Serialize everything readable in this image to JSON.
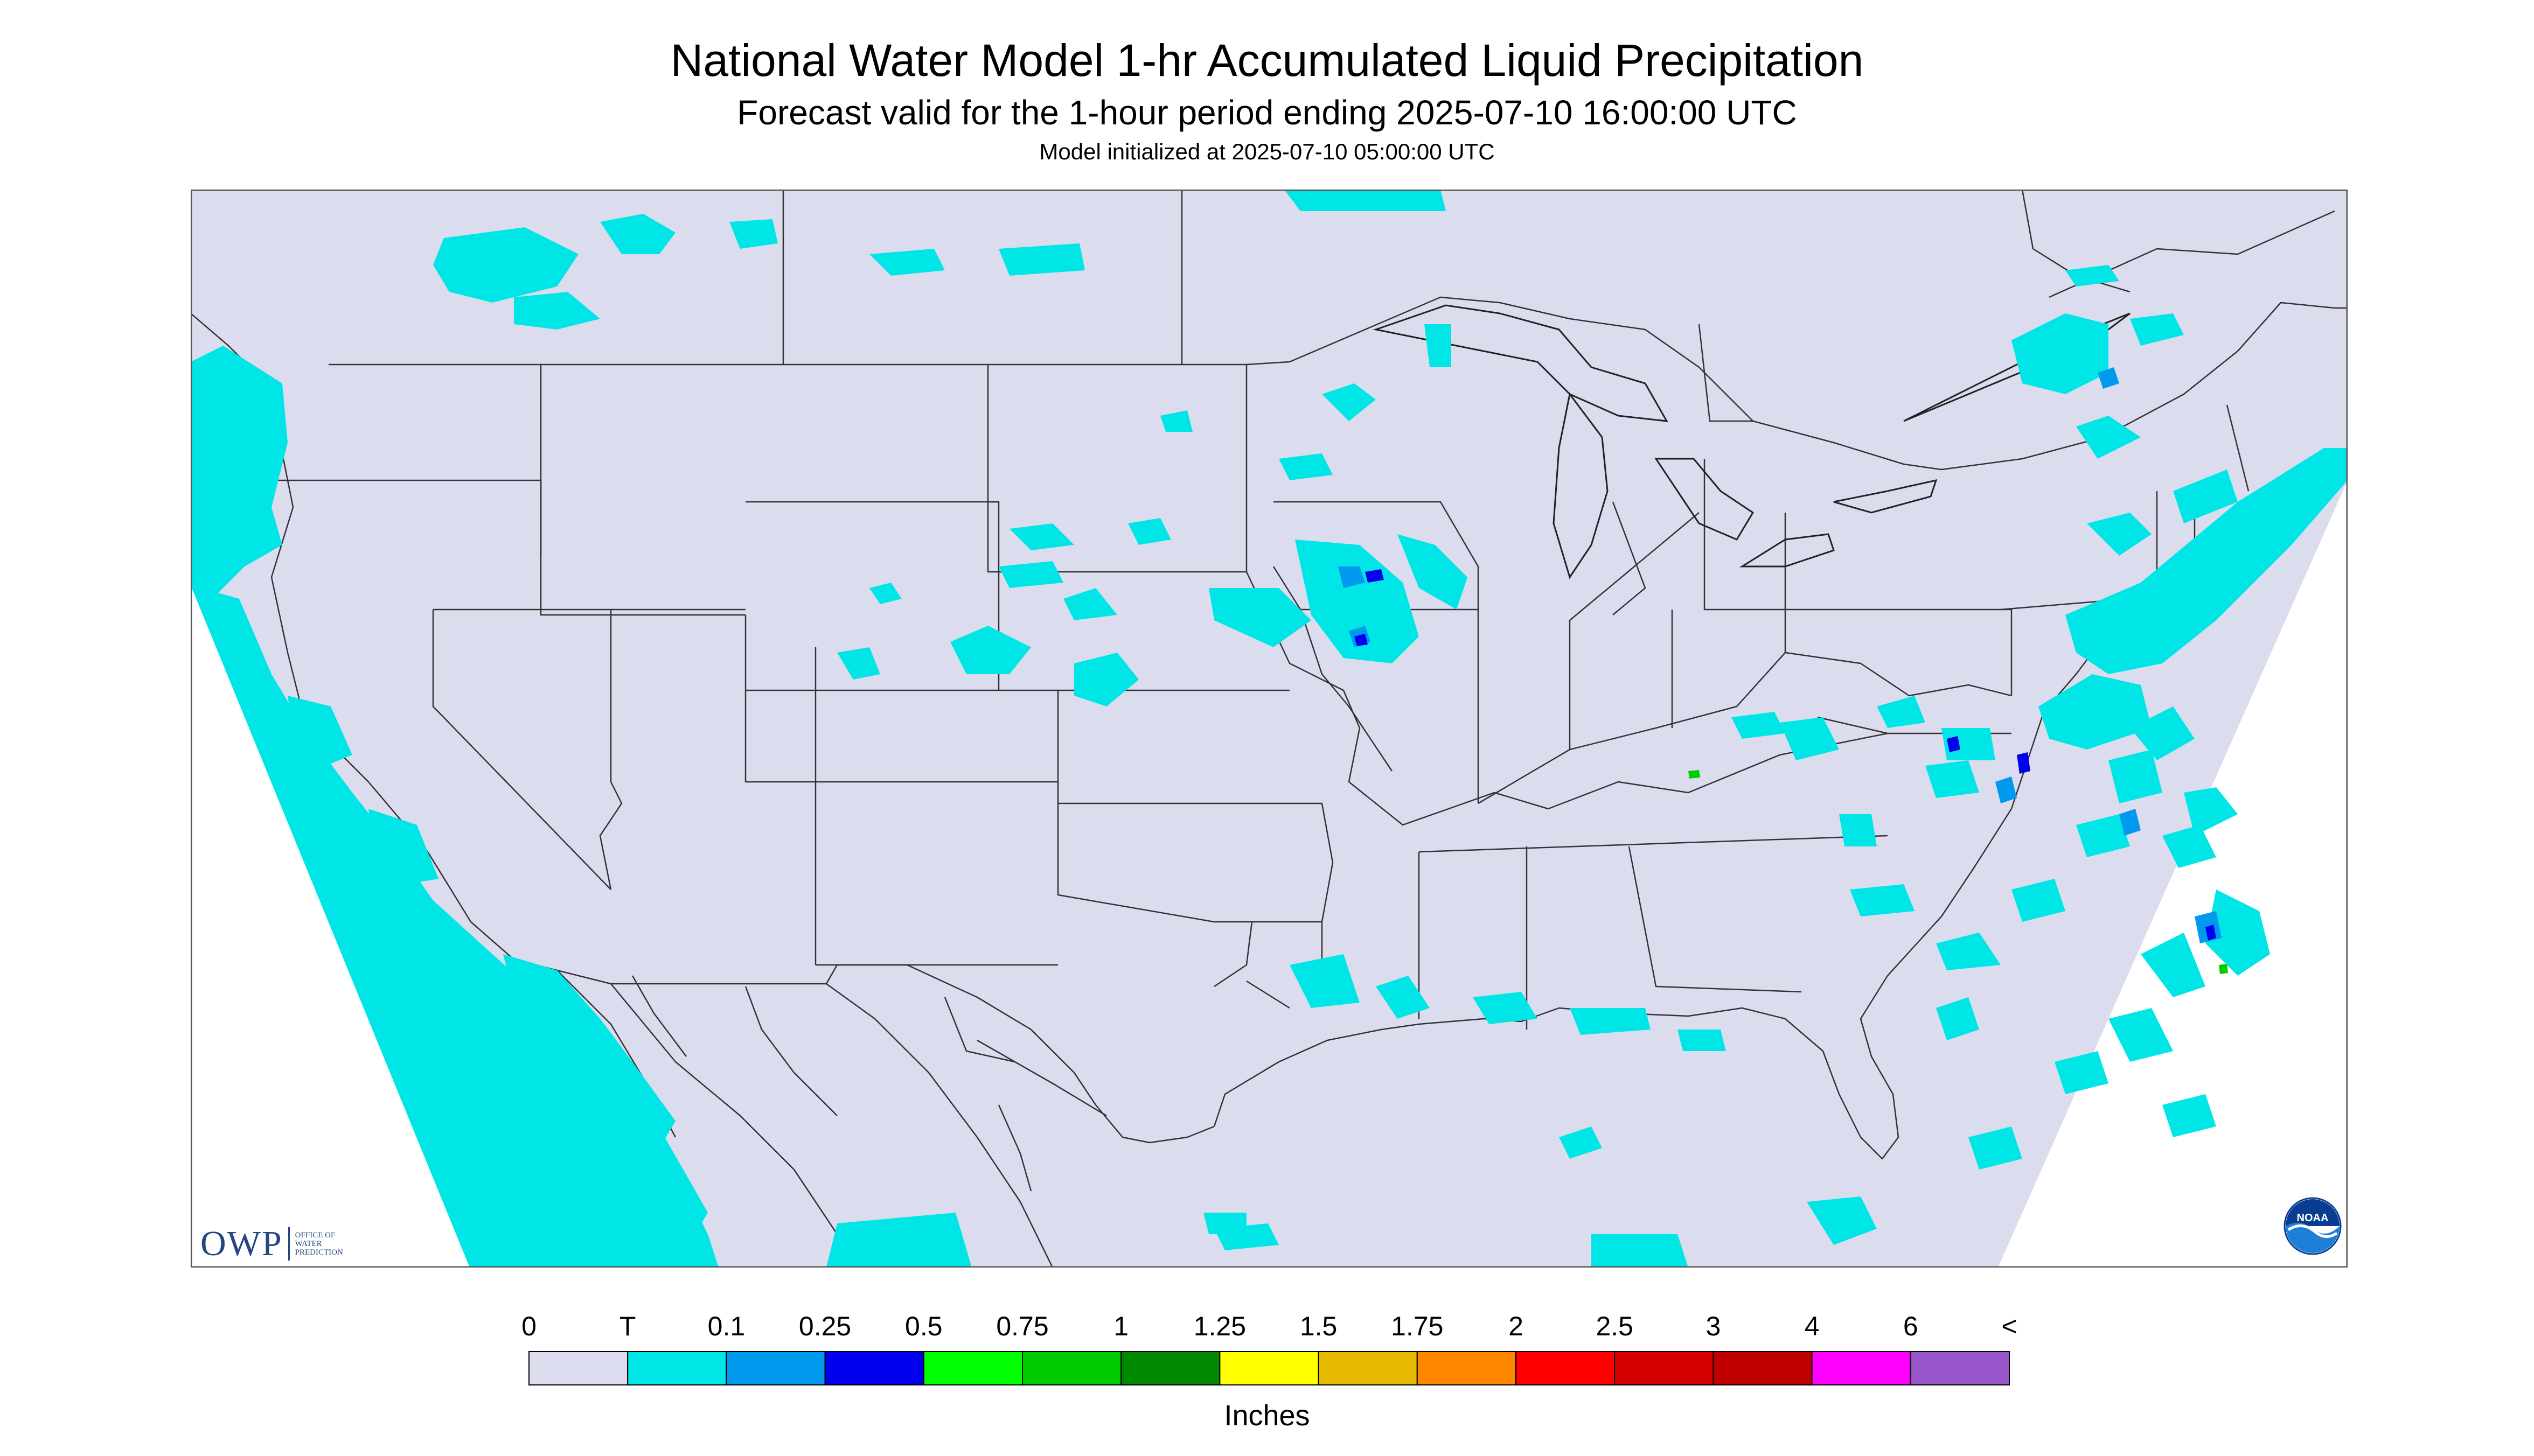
{
  "title": "National Water Model 1-hr Accumulated Liquid Precipitation",
  "subtitle": "Forecast valid for the 1-hour period ending 2025-07-10 16:00:00 UTC",
  "init": "Model initialized at 2025-07-10 05:00:00 UTC",
  "legend": {
    "label": "Inches",
    "ticks": [
      "0",
      "T",
      "0.1",
      "0.25",
      "0.5",
      "0.75",
      "1",
      "1.25",
      "1.5",
      "1.75",
      "2",
      "2.5",
      "3",
      "4",
      "6",
      "<"
    ],
    "colors": [
      "#dcdcef",
      "#00e6e6",
      "#0099ee",
      "#0000ee",
      "#00ff00",
      "#00cc00",
      "#008800",
      "#ffff00",
      "#e6b800",
      "#ff8800",
      "#ff0000",
      "#d60000",
      "#c00000",
      "#ff00ff",
      "#9955cc"
    ]
  },
  "colors": {
    "background": "#dcdcef",
    "trace": "#00e6e6",
    "light": "#0099ee",
    "moderate": "#0000ee",
    "heavy": "#00cc00",
    "border": "#333333"
  },
  "logos": {
    "owp_main": "OWP",
    "owp_sub": [
      "OFFICE OF",
      "WATER",
      "PREDICTION"
    ],
    "noaa": "NOAA"
  }
}
